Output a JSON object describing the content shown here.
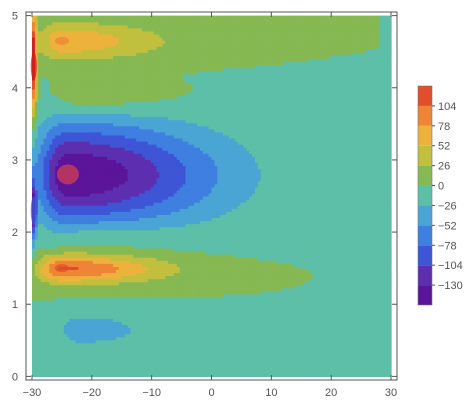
{
  "chart_data": {
    "type": "heatmap",
    "subtype": "filled-contour",
    "x_ticks": [
      "−30",
      "−20",
      "−10",
      "0",
      "10",
      "20",
      "30"
    ],
    "x_tick_values": [
      -30,
      -20,
      -10,
      0,
      10,
      20,
      30
    ],
    "y_ticks": [
      "0",
      "1",
      "2",
      "3",
      "4",
      "5"
    ],
    "y_tick_values": [
      0,
      1,
      2,
      3,
      4,
      5
    ],
    "xlim": [
      -31,
      31
    ],
    "ylim": [
      -0.05,
      5.05
    ],
    "data_xrange": [
      -30,
      30
    ],
    "data_yrange": [
      0,
      5
    ],
    "legend_ticks": [
      "104",
      "78",
      "52",
      "26",
      "0",
      "−26",
      "−52",
      "−78",
      "−104",
      "−130"
    ],
    "legend_values": [
      104,
      78,
      52,
      26,
      0,
      -26,
      -52,
      -78,
      -104,
      -130
    ],
    "legend_range": [
      -156,
      130
    ],
    "legend_placement": "right",
    "grid": false,
    "background_level_color": "#86b853",
    "color_scale": [
      {
        "value": -156,
        "color": "#5a159a"
      },
      {
        "value": -130,
        "color": "#5d2fb0"
      },
      {
        "value": -104,
        "color": "#3e55d6"
      },
      {
        "value": -78,
        "color": "#3f7fe0"
      },
      {
        "value": -52,
        "color": "#4aa5d4"
      },
      {
        "value": -26,
        "color": "#5dbfa8"
      },
      {
        "value": 0,
        "color": "#86b853"
      },
      {
        "value": 26,
        "color": "#c2bf3e"
      },
      {
        "value": 52,
        "color": "#ecb23c"
      },
      {
        "value": 78,
        "color": "#ee8436"
      },
      {
        "value": 104,
        "color": "#e04e2c"
      },
      {
        "value": 130,
        "color": "#d11f1d"
      }
    ],
    "features": [
      {
        "kind": "min",
        "x": -24,
        "y": 2.8,
        "value": -150,
        "color": "#c33a5a"
      },
      {
        "kind": "max",
        "x": -25,
        "y": 1.5,
        "value": 110,
        "color": "#e04e2c"
      },
      {
        "kind": "max",
        "x": -25,
        "y": 4.65,
        "value": 70,
        "color": "#ee8436"
      },
      {
        "kind": "min",
        "x": -22,
        "y": 0.65,
        "value": -40,
        "color": "#4aa5d4"
      },
      {
        "kind": "wall-max",
        "x": -29.7,
        "y": 4.3,
        "value": 130,
        "color": "#d11f1d"
      },
      {
        "kind": "wall-min",
        "x": -29.7,
        "y": 2.3,
        "value": -120,
        "color": "#3e55d6"
      }
    ]
  }
}
